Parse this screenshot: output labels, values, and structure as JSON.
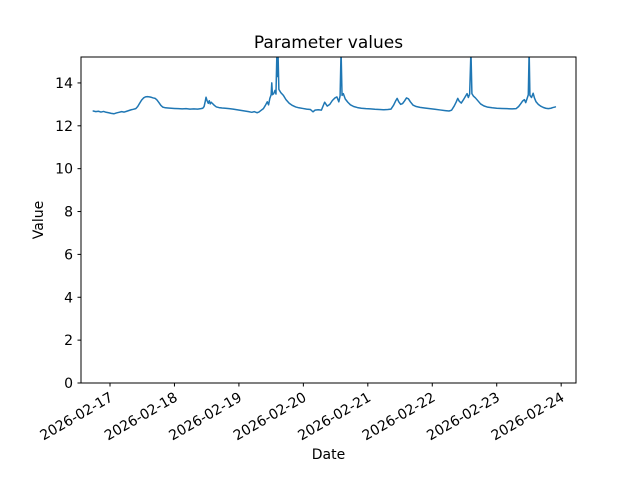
{
  "chart_data": {
    "type": "line",
    "title": "Parameter values",
    "xlabel": "Date",
    "ylabel": "Value",
    "legend": null,
    "grid": false,
    "line_color": "#1f77b4",
    "line_width": 1.5,
    "ylim": [
      0,
      15.21
    ],
    "yticks": [
      0,
      2,
      4,
      6,
      8,
      10,
      12,
      14
    ],
    "xlim_days": [
      -0.45,
      7.23
    ],
    "x_tick_positions_days": [
      0,
      1,
      2,
      3,
      4,
      5,
      6,
      7
    ],
    "x_tick_labels": [
      "2026-02-17",
      "2026-02-18",
      "2026-02-19",
      "2026-02-20",
      "2026-02-21",
      "2026-02-22",
      "2026-02-23",
      "2026-02-24"
    ],
    "x_tick_label_rotation_deg": 30,
    "series": [
      {
        "name": "parameter-values",
        "x_unit": "days since 2026-02-17 00:00",
        "points": [
          [
            -0.26,
            12.69
          ],
          [
            -0.22,
            12.66
          ],
          [
            -0.18,
            12.68
          ],
          [
            -0.14,
            12.64
          ],
          [
            -0.1,
            12.67
          ],
          [
            -0.06,
            12.63
          ],
          [
            -0.02,
            12.61
          ],
          [
            0.02,
            12.58
          ],
          [
            0.06,
            12.56
          ],
          [
            0.1,
            12.6
          ],
          [
            0.14,
            12.63
          ],
          [
            0.18,
            12.66
          ],
          [
            0.22,
            12.64
          ],
          [
            0.26,
            12.68
          ],
          [
            0.3,
            12.72
          ],
          [
            0.33,
            12.75
          ],
          [
            0.36,
            12.77
          ],
          [
            0.4,
            12.8
          ],
          [
            0.43,
            12.9
          ],
          [
            0.46,
            13.05
          ],
          [
            0.49,
            13.2
          ],
          [
            0.52,
            13.3
          ],
          [
            0.55,
            13.35
          ],
          [
            0.58,
            13.36
          ],
          [
            0.61,
            13.35
          ],
          [
            0.64,
            13.33
          ],
          [
            0.67,
            13.3
          ],
          [
            0.7,
            13.28
          ],
          [
            0.73,
            13.2
          ],
          [
            0.76,
            13.08
          ],
          [
            0.79,
            12.95
          ],
          [
            0.82,
            12.87
          ],
          [
            0.86,
            12.84
          ],
          [
            0.9,
            12.83
          ],
          [
            0.95,
            12.82
          ],
          [
            1.0,
            12.81
          ],
          [
            1.06,
            12.8
          ],
          [
            1.12,
            12.79
          ],
          [
            1.18,
            12.8
          ],
          [
            1.24,
            12.78
          ],
          [
            1.3,
            12.79
          ],
          [
            1.36,
            12.78
          ],
          [
            1.41,
            12.8
          ],
          [
            1.44,
            12.82
          ],
          [
            1.46,
            12.9
          ],
          [
            1.475,
            13.1
          ],
          [
            1.49,
            13.33
          ],
          [
            1.505,
            13.18
          ],
          [
            1.525,
            13.05
          ],
          [
            1.54,
            13.17
          ],
          [
            1.555,
            13.02
          ],
          [
            1.57,
            13.1
          ],
          [
            1.59,
            13.04
          ],
          [
            1.62,
            12.95
          ],
          [
            1.65,
            12.88
          ],
          [
            1.69,
            12.85
          ],
          [
            1.74,
            12.83
          ],
          [
            1.79,
            12.82
          ],
          [
            1.85,
            12.8
          ],
          [
            1.91,
            12.78
          ],
          [
            1.97,
            12.75
          ],
          [
            2.03,
            12.72
          ],
          [
            2.09,
            12.69
          ],
          [
            2.15,
            12.66
          ],
          [
            2.2,
            12.63
          ],
          [
            2.24,
            12.66
          ],
          [
            2.28,
            12.61
          ],
          [
            2.31,
            12.64
          ],
          [
            2.34,
            12.71
          ],
          [
            2.38,
            12.8
          ],
          [
            2.41,
            12.95
          ],
          [
            2.44,
            13.12
          ],
          [
            2.46,
            12.98
          ],
          [
            2.48,
            13.28
          ],
          [
            2.5,
            13.45
          ],
          [
            2.51,
            14.0
          ],
          [
            2.52,
            13.45
          ],
          [
            2.54,
            13.5
          ],
          [
            2.56,
            13.65
          ],
          [
            2.575,
            13.48
          ],
          [
            2.59,
            15.5
          ],
          [
            2.6,
            14.3
          ],
          [
            2.606,
            15.5
          ],
          [
            2.62,
            13.7
          ],
          [
            2.65,
            13.55
          ],
          [
            2.69,
            13.42
          ],
          [
            2.73,
            13.22
          ],
          [
            2.78,
            13.05
          ],
          [
            2.83,
            12.95
          ],
          [
            2.88,
            12.88
          ],
          [
            2.93,
            12.84
          ],
          [
            2.99,
            12.81
          ],
          [
            3.05,
            12.78
          ],
          [
            3.11,
            12.76
          ],
          [
            3.15,
            12.65
          ],
          [
            3.18,
            12.73
          ],
          [
            3.23,
            12.75
          ],
          [
            3.28,
            12.73
          ],
          [
            3.33,
            13.1
          ],
          [
            3.37,
            12.92
          ],
          [
            3.41,
            13.0
          ],
          [
            3.45,
            13.18
          ],
          [
            3.49,
            13.3
          ],
          [
            3.52,
            13.35
          ],
          [
            3.55,
            13.12
          ],
          [
            3.57,
            13.4
          ],
          [
            3.585,
            15.5
          ],
          [
            3.6,
            13.42
          ],
          [
            3.62,
            13.5
          ],
          [
            3.65,
            13.25
          ],
          [
            3.69,
            13.1
          ],
          [
            3.73,
            12.98
          ],
          [
            3.78,
            12.9
          ],
          [
            3.84,
            12.85
          ],
          [
            3.9,
            12.82
          ],
          [
            3.97,
            12.8
          ],
          [
            4.04,
            12.79
          ],
          [
            4.11,
            12.77
          ],
          [
            4.18,
            12.76
          ],
          [
            4.25,
            12.75
          ],
          [
            4.31,
            12.76
          ],
          [
            4.36,
            12.78
          ],
          [
            4.4,
            12.96
          ],
          [
            4.43,
            13.15
          ],
          [
            4.455,
            13.28
          ],
          [
            4.48,
            13.12
          ],
          [
            4.51,
            13.0
          ],
          [
            4.54,
            13.04
          ],
          [
            4.57,
            13.16
          ],
          [
            4.6,
            13.3
          ],
          [
            4.63,
            13.26
          ],
          [
            4.66,
            13.12
          ],
          [
            4.7,
            12.97
          ],
          [
            4.75,
            12.9
          ],
          [
            4.81,
            12.86
          ],
          [
            4.88,
            12.83
          ],
          [
            4.96,
            12.8
          ],
          [
            5.04,
            12.77
          ],
          [
            5.12,
            12.74
          ],
          [
            5.2,
            12.71
          ],
          [
            5.26,
            12.69
          ],
          [
            5.3,
            12.73
          ],
          [
            5.34,
            12.92
          ],
          [
            5.37,
            13.1
          ],
          [
            5.395,
            13.28
          ],
          [
            5.42,
            13.14
          ],
          [
            5.45,
            13.06
          ],
          [
            5.48,
            13.2
          ],
          [
            5.51,
            13.35
          ],
          [
            5.54,
            13.5
          ],
          [
            5.56,
            13.32
          ],
          [
            5.58,
            13.48
          ],
          [
            5.6,
            15.5
          ],
          [
            5.615,
            13.5
          ],
          [
            5.64,
            13.38
          ],
          [
            5.67,
            13.3
          ],
          [
            5.71,
            13.16
          ],
          [
            5.75,
            13.02
          ],
          [
            5.8,
            12.93
          ],
          [
            5.86,
            12.87
          ],
          [
            5.93,
            12.84
          ],
          [
            6.0,
            12.82
          ],
          [
            6.08,
            12.81
          ],
          [
            6.16,
            12.8
          ],
          [
            6.24,
            12.79
          ],
          [
            6.3,
            12.8
          ],
          [
            6.34,
            12.9
          ],
          [
            6.37,
            13.02
          ],
          [
            6.4,
            13.15
          ],
          [
            6.43,
            13.22
          ],
          [
            6.45,
            13.08
          ],
          [
            6.47,
            13.26
          ],
          [
            6.49,
            13.45
          ],
          [
            6.503,
            15.5
          ],
          [
            6.515,
            13.42
          ],
          [
            6.54,
            13.32
          ],
          [
            6.565,
            13.52
          ],
          [
            6.585,
            13.3
          ],
          [
            6.61,
            13.12
          ],
          [
            6.645,
            13.0
          ],
          [
            6.68,
            12.92
          ],
          [
            6.72,
            12.86
          ],
          [
            6.76,
            12.82
          ],
          [
            6.8,
            12.8
          ],
          [
            6.84,
            12.82
          ],
          [
            6.87,
            12.85
          ],
          [
            6.91,
            12.88
          ]
        ]
      }
    ]
  }
}
